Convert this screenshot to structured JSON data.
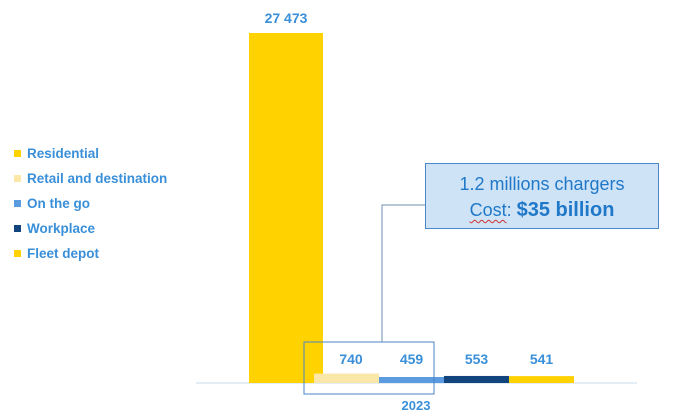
{
  "chart_data": {
    "type": "bar",
    "title": "",
    "xlabel": "",
    "ylabel": "",
    "ylim": [
      0,
      30000
    ],
    "grid": false,
    "legend_position": "left",
    "main_bar": {
      "name": "Residential",
      "value": 27473,
      "label": "27 473",
      "color": "#ffd200"
    },
    "group_categories": [
      "2023"
    ],
    "series": [
      {
        "name": "Retail and destination",
        "value": 740,
        "label": "740",
        "color": "#fbe8a8"
      },
      {
        "name": "On the go",
        "value": 459,
        "label": "459",
        "color": "#5b9be0"
      },
      {
        "name": "Workplace",
        "value": 553,
        "label": "553",
        "color": "#12447e"
      },
      {
        "name": "Fleet depot",
        "value": 541,
        "label": "541",
        "color": "#ffd200"
      }
    ]
  },
  "legend": {
    "items": [
      {
        "label": "Residential",
        "color": "#ffd200"
      },
      {
        "label": "Retail and destination",
        "color": "#fbe8a8"
      },
      {
        "label": "On the go",
        "color": "#5b9be0"
      },
      {
        "label": "Workplace",
        "color": "#12447e"
      },
      {
        "label": "Fleet depot",
        "color": "#ffd200"
      }
    ]
  },
  "callout": {
    "line1": "1.2 millions chargers",
    "cost_label": "Cost",
    "cost_sep": ": ",
    "cost_value": "$35 billion"
  },
  "colors": {
    "label_blue": "#3a8fd9",
    "axis": "#c9d8ea",
    "frame": "#4a86c8"
  }
}
